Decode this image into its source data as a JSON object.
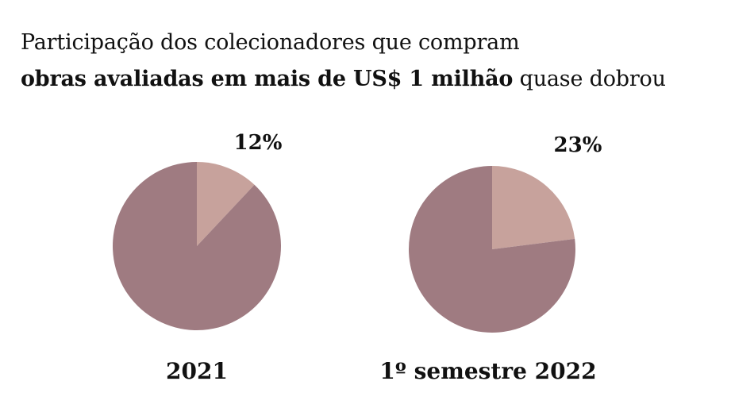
{
  "header": {
    "title_line1": "Participação dos colecionadores que compram",
    "title_line2_bold": "obras avaliadas em mais de US$ 1 milhão",
    "title_line2_rest": " quase dobrou"
  },
  "colors": {
    "highlight_slice": "#c7a29c",
    "rest_slice": "#9f7b81"
  },
  "chart_data": [
    {
      "type": "pie",
      "category_label": "2021",
      "slices": [
        {
          "value": 12,
          "label": "12%",
          "color": "#c7a29c"
        },
        {
          "value": 88,
          "label": "",
          "color": "#9f7b81"
        }
      ]
    },
    {
      "type": "pie",
      "category_label": "1º semestre 2022",
      "slices": [
        {
          "value": 23,
          "label": "23%",
          "color": "#c7a29c"
        },
        {
          "value": 77,
          "label": "",
          "color": "#9f7b81"
        }
      ]
    }
  ]
}
